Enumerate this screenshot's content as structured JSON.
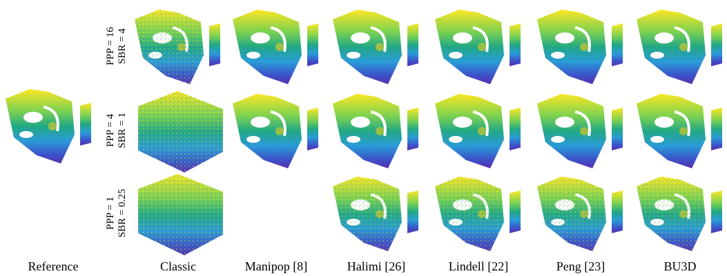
{
  "reference_label": "Reference",
  "columns": [
    "Classic",
    "Manipop [8]",
    "Halimi [26]",
    "Lindell [22]",
    "Peng [23]",
    "BU3D"
  ],
  "rows": [
    {
      "lines": [
        "PPP = 16",
        "SBR = 4"
      ]
    },
    {
      "lines": [
        "PPP = 4",
        "SBR = 1"
      ]
    },
    {
      "lines": [
        "PPP = 1",
        "SBR = 0.25"
      ]
    }
  ]
}
